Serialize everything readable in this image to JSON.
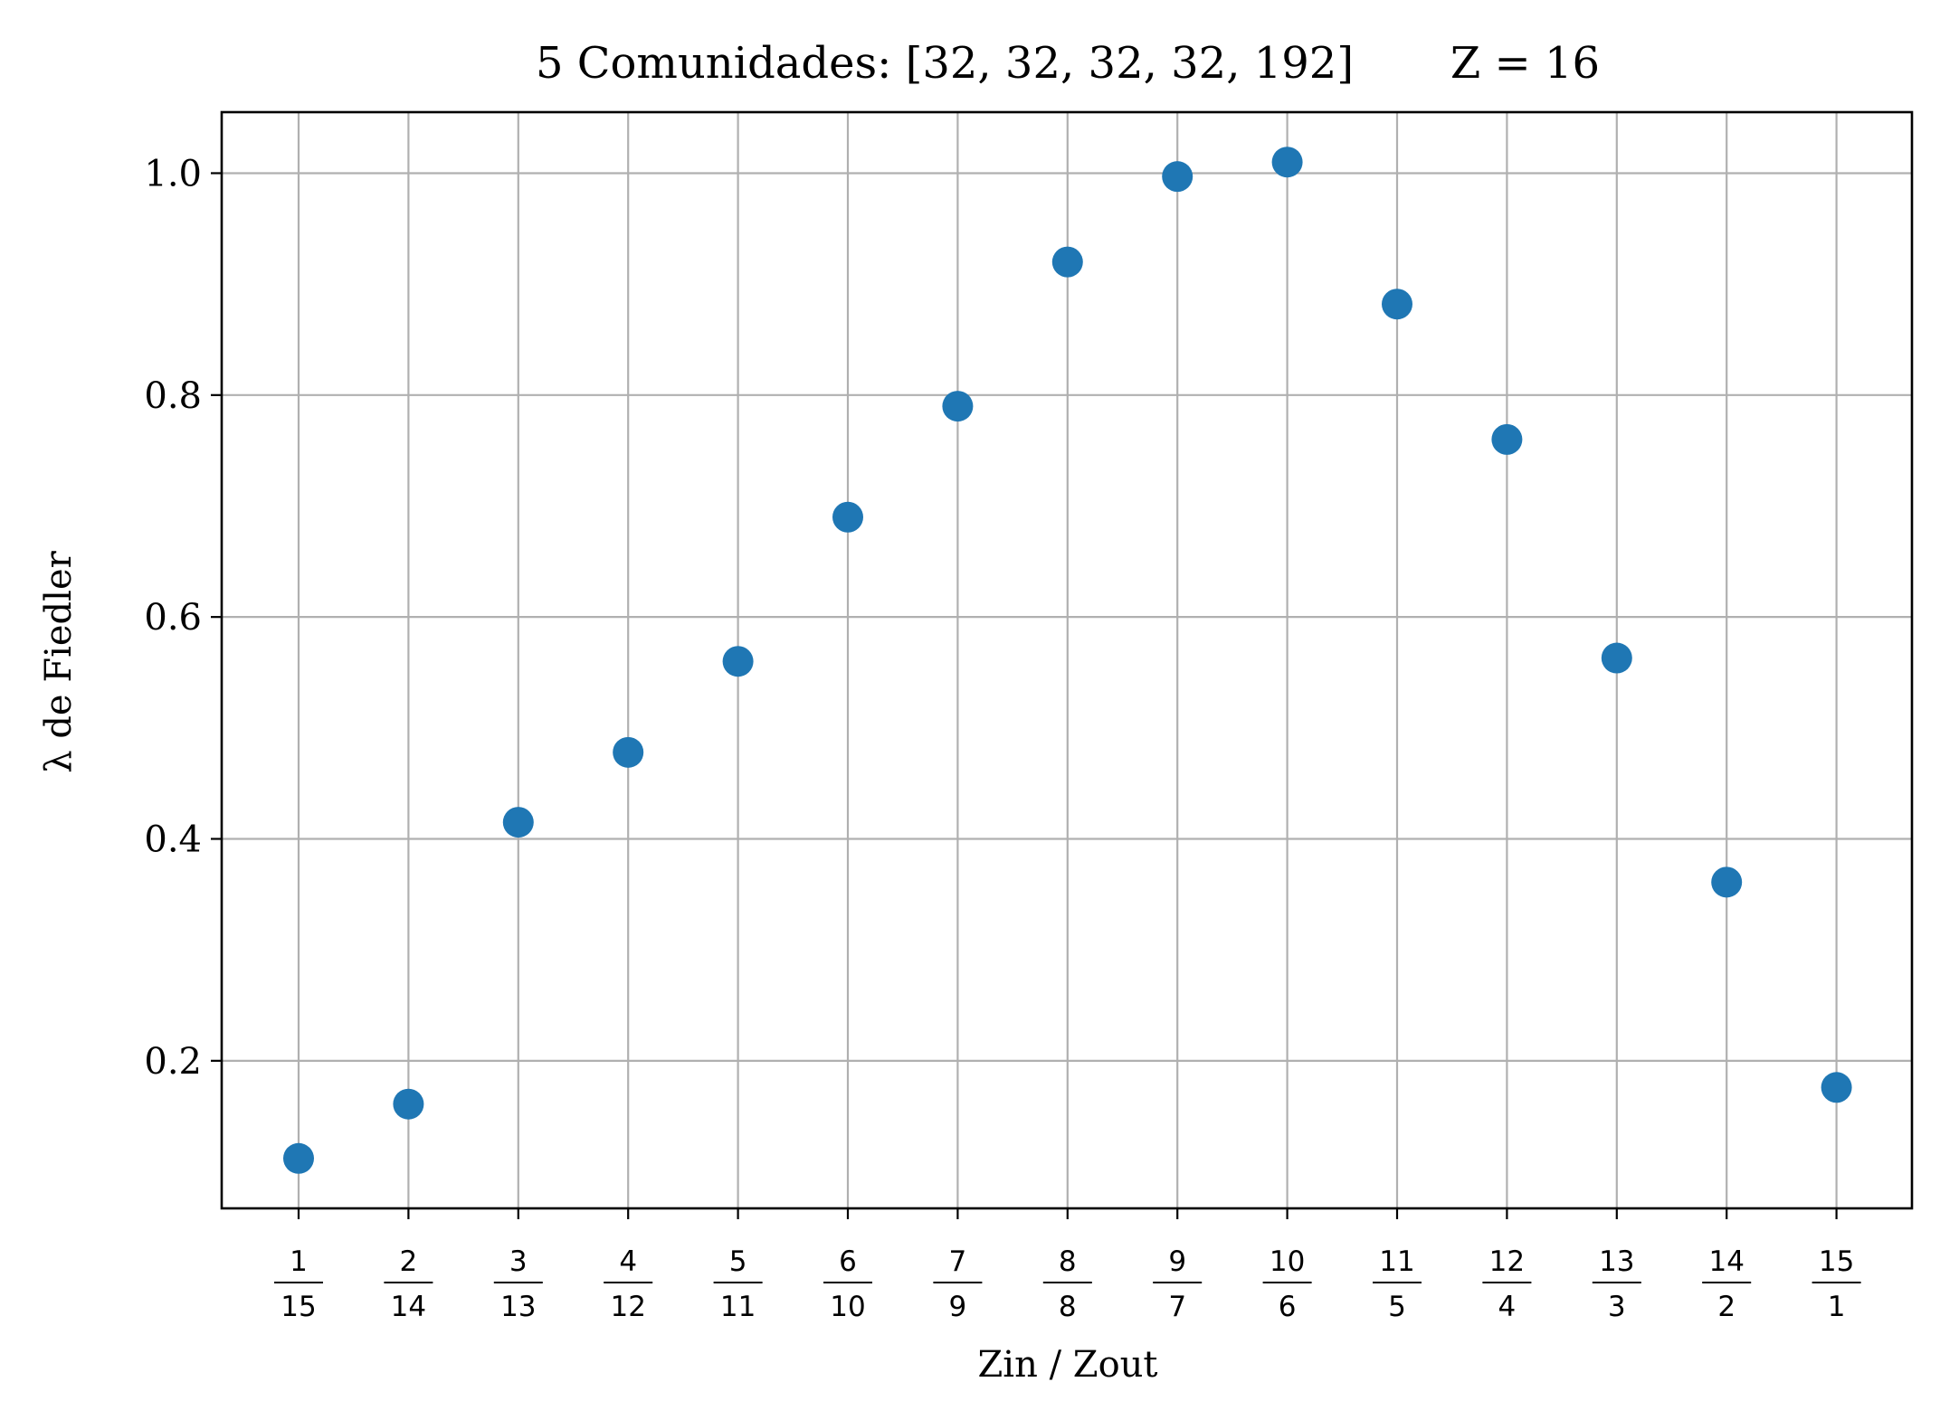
{
  "chart_data": {
    "type": "scatter",
    "title": "5 Comunidades: [32, 32, 32, 32, 192]       Z = 16",
    "xlabel": "Zin / Zout",
    "ylabel": "λ de Fiedler",
    "x_tick_labels": [
      {
        "num": "1",
        "den": "15"
      },
      {
        "num": "2",
        "den": "14"
      },
      {
        "num": "3",
        "den": "13"
      },
      {
        "num": "4",
        "den": "12"
      },
      {
        "num": "5",
        "den": "11"
      },
      {
        "num": "6",
        "den": "10"
      },
      {
        "num": "7",
        "den": "9"
      },
      {
        "num": "8",
        "den": "8"
      },
      {
        "num": "9",
        "den": "7"
      },
      {
        "num": "10",
        "den": "6"
      },
      {
        "num": "11",
        "den": "5"
      },
      {
        "num": "12",
        "den": "4"
      },
      {
        "num": "13",
        "den": "3"
      },
      {
        "num": "14",
        "den": "2"
      },
      {
        "num": "15",
        "den": "1"
      }
    ],
    "y_ticks": [
      0.2,
      0.4,
      0.6,
      0.8,
      1.0
    ],
    "y_tick_labels": [
      "0.2",
      "0.4",
      "0.6",
      "0.8",
      "1.0"
    ],
    "ylim": [
      0.067,
      1.055
    ],
    "values": [
      0.112,
      0.161,
      0.415,
      0.478,
      0.56,
      0.69,
      0.79,
      0.92,
      0.997,
      1.01,
      0.882,
      0.76,
      0.563,
      0.361,
      0.176
    ],
    "grid": true,
    "marker_color": "#1f77b4",
    "grid_color": "#b0b0b0",
    "axis_color": "#000000"
  }
}
